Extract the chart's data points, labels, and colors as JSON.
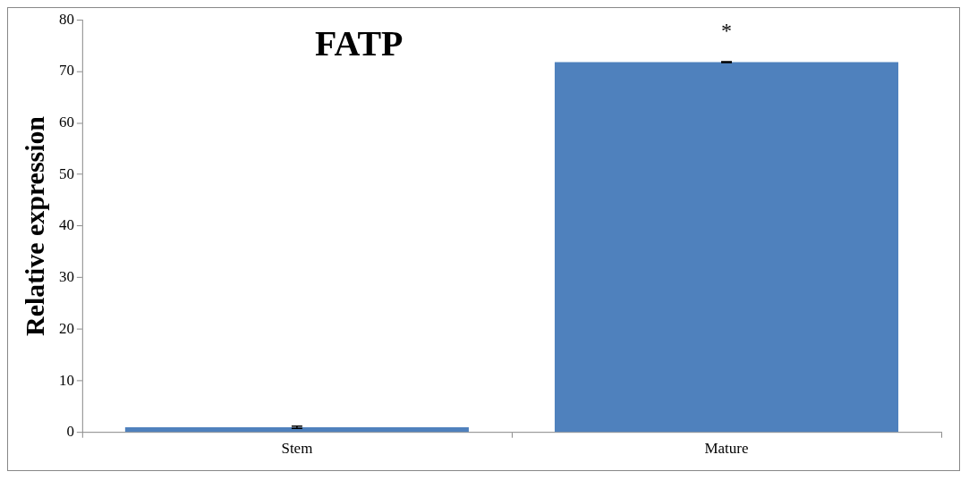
{
  "chart_data": {
    "type": "bar",
    "title": "FATP",
    "ylabel": "Relative expression",
    "categories": [
      "Stem",
      "Mature"
    ],
    "values": [
      1.0,
      71.8
    ],
    "errors": [
      0.2,
      0.1
    ],
    "color": "#4f81bd",
    "ylim": [
      0,
      80
    ],
    "yticks": [
      0,
      10,
      20,
      30,
      40,
      50,
      60,
      70,
      80
    ],
    "grid": false,
    "annotations": [
      "*"
    ]
  }
}
